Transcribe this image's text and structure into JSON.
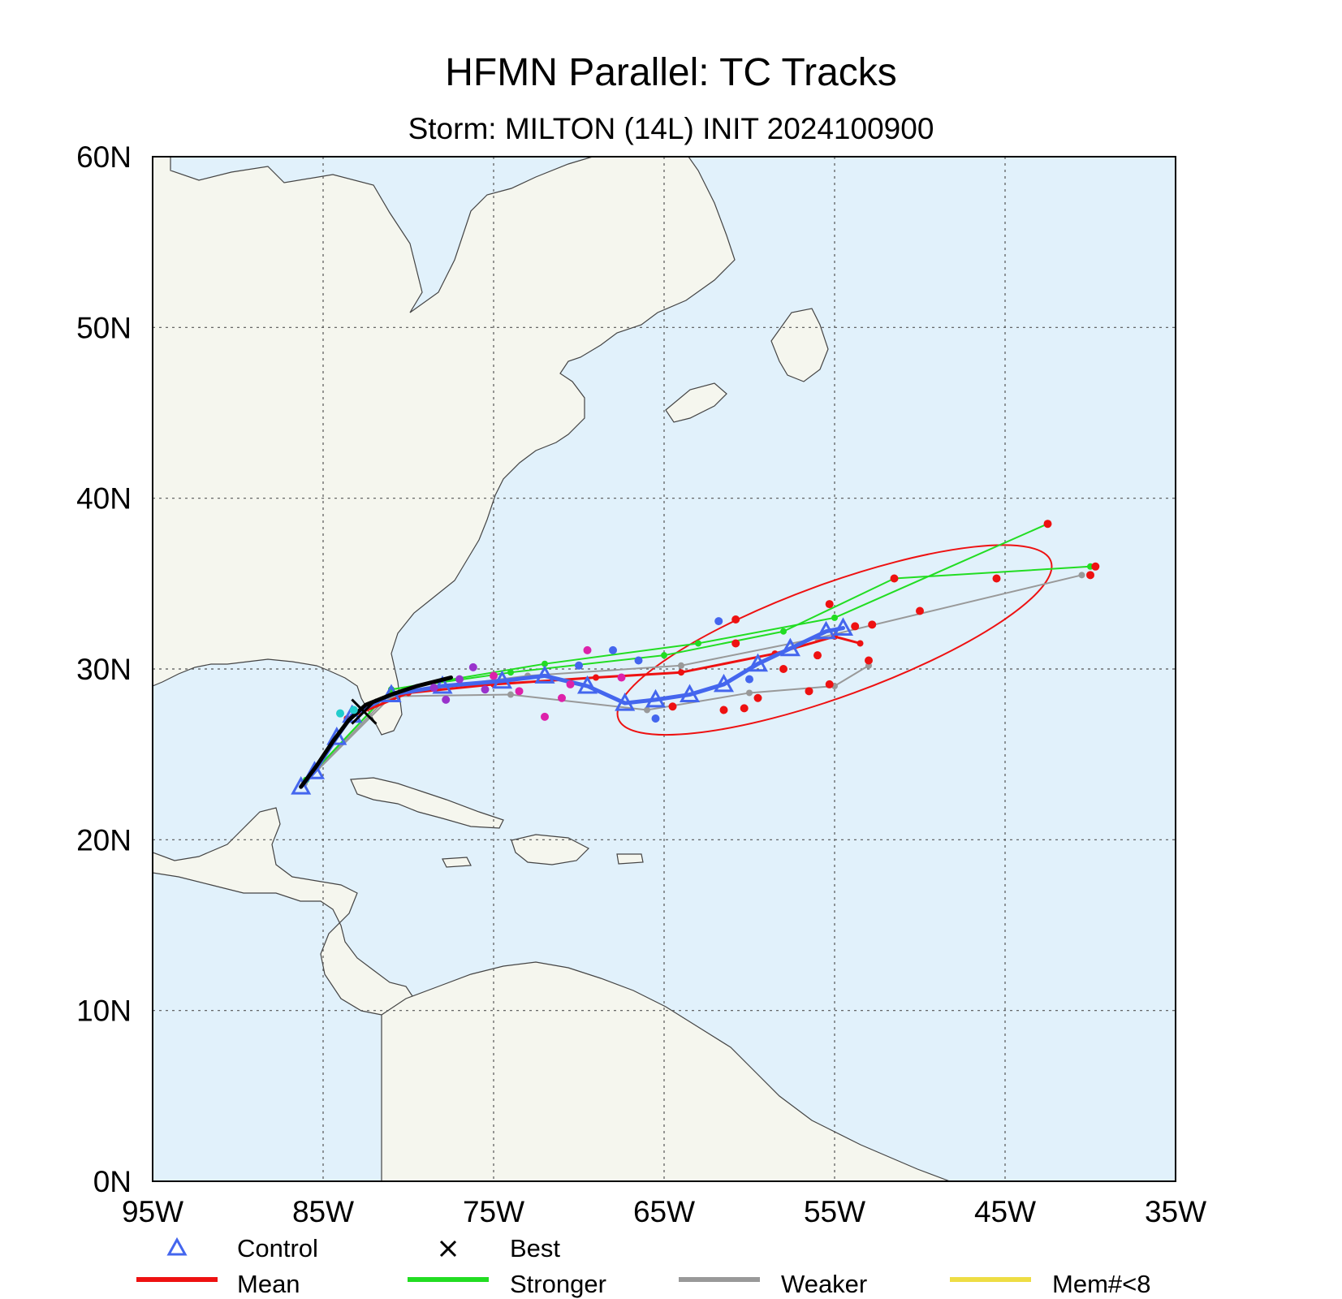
{
  "title": "HFMN Parallel: TC Tracks",
  "subtitle": "Storm: MILTON (14L) INIT 2024100900",
  "map": {
    "lon_range": [
      -95,
      -35
    ],
    "lat_range": [
      0,
      60
    ],
    "lat_ticks": [
      {
        "value": 60,
        "label": "60N"
      },
      {
        "value": 50,
        "label": "50N"
      },
      {
        "value": 40,
        "label": "40N"
      },
      {
        "value": 30,
        "label": "30N"
      },
      {
        "value": 20,
        "label": "20N"
      },
      {
        "value": 10,
        "label": "10N"
      },
      {
        "value": 0,
        "label": "0N"
      }
    ],
    "lon_ticks": [
      {
        "value": -95,
        "label": "95W"
      },
      {
        "value": -85,
        "label": "85W"
      },
      {
        "value": -75,
        "label": "75W"
      },
      {
        "value": -65,
        "label": "65W"
      },
      {
        "value": -55,
        "label": "55W"
      },
      {
        "value": -45,
        "label": "45W"
      },
      {
        "value": -35,
        "label": "35W"
      }
    ],
    "grid": "dotted",
    "colors": {
      "ocean": "#e1f1fb",
      "land": "#f5f6ee",
      "coast": "#444444",
      "border": "#777777"
    }
  },
  "chart_data": {
    "type": "scatter",
    "title": "HFMN Parallel: TC Tracks",
    "subtitle": "Storm: MILTON (14L) INIT 2024100900",
    "xlim": [
      -95,
      -35
    ],
    "ylim": [
      0,
      60
    ],
    "series": [
      {
        "name": "Best",
        "color": "#000000",
        "points": [
          [
            -86.3,
            23.1
          ],
          [
            -85.4,
            24.3
          ],
          [
            -84.4,
            25.8
          ],
          [
            -83.5,
            27.0
          ],
          [
            -82.5,
            27.9
          ],
          [
            -81.0,
            28.5
          ],
          [
            -79.5,
            29.0
          ],
          [
            -77.5,
            29.5
          ]
        ]
      },
      {
        "name": "Control",
        "color": "#4466ee",
        "points": [
          [
            -86.3,
            23.1
          ],
          [
            -85.5,
            24.0
          ],
          [
            -84.2,
            26.0
          ],
          [
            -83.3,
            27.3
          ],
          [
            -81.0,
            28.5
          ],
          [
            -78.0,
            29.0
          ],
          [
            -74.5,
            29.3
          ],
          [
            -72.0,
            29.6
          ],
          [
            -69.5,
            29.0
          ],
          [
            -67.3,
            28.0
          ],
          [
            -65.5,
            28.2
          ],
          [
            -63.5,
            28.5
          ],
          [
            -61.5,
            29.1
          ],
          [
            -59.5,
            30.3
          ],
          [
            -57.6,
            31.2
          ],
          [
            -55.5,
            32.2
          ],
          [
            -54.5,
            32.4
          ]
        ]
      },
      {
        "name": "Stronger",
        "color": "#22dd22",
        "points": [
          [
            -86.0,
            23.5
          ],
          [
            -81.0,
            28.8
          ],
          [
            -74.0,
            29.8
          ],
          [
            -65.0,
            30.8
          ],
          [
            -58.0,
            32.2
          ],
          [
            -51.5,
            35.3
          ],
          [
            -40.0,
            36.0
          ]
        ]
      },
      {
        "name": "Stronger",
        "color": "#22dd22",
        "points": [
          [
            -86.0,
            23.5
          ],
          [
            -81.0,
            28.8
          ],
          [
            -72.0,
            30.3
          ],
          [
            -63.0,
            31.5
          ],
          [
            -55.0,
            33.0
          ],
          [
            -42.5,
            38.5
          ]
        ]
      },
      {
        "name": "Weaker",
        "color": "#999999",
        "points": [
          [
            -86.1,
            23.3
          ],
          [
            -81.0,
            28.6
          ],
          [
            -73.0,
            29.6
          ],
          [
            -64.0,
            30.2
          ],
          [
            -56.0,
            31.8
          ],
          [
            -40.5,
            35.5
          ]
        ]
      },
      {
        "name": "Weaker",
        "color": "#999999",
        "points": [
          [
            -86.1,
            23.3
          ],
          [
            -81.0,
            28.4
          ],
          [
            -74.0,
            28.5
          ],
          [
            -66.0,
            27.6
          ],
          [
            -60.0,
            28.6
          ],
          [
            -55.0,
            29.0
          ],
          [
            -53.0,
            30.2
          ]
        ]
      },
      {
        "name": "Mean",
        "color": "#ee1111",
        "points": [
          [
            -83.6,
            27.1
          ],
          [
            -80.0,
            28.6
          ],
          [
            -75.0,
            29.1
          ],
          [
            -69.0,
            29.5
          ],
          [
            -64.0,
            29.8
          ],
          [
            -58.5,
            30.9
          ],
          [
            -55.0,
            31.9
          ],
          [
            -53.5,
            31.5
          ]
        ]
      }
    ],
    "extra_points": [
      {
        "color": "#ee1111",
        "points": [
          [
            -42.5,
            38.5
          ],
          [
            -39.7,
            36.0
          ],
          [
            -40.0,
            35.5
          ],
          [
            -45.5,
            35.3
          ],
          [
            -51.5,
            35.3
          ],
          [
            -50.0,
            33.4
          ],
          [
            -55.3,
            33.8
          ],
          [
            -60.8,
            32.9
          ],
          [
            -53.0,
            30.5
          ],
          [
            -55.3,
            29.1
          ],
          [
            -56.5,
            28.7
          ],
          [
            -59.5,
            28.3
          ],
          [
            -60.3,
            27.7
          ],
          [
            -61.5,
            27.6
          ],
          [
            -64.5,
            27.8
          ],
          [
            -58.0,
            30.0
          ],
          [
            -56.0,
            30.8
          ],
          [
            -60.8,
            31.5
          ],
          [
            -53.8,
            32.5
          ],
          [
            -52.8,
            32.6
          ]
        ]
      },
      {
        "color": "#4466ee",
        "points": [
          [
            -61.8,
            32.8
          ],
          [
            -68.0,
            31.1
          ],
          [
            -65.5,
            27.1
          ],
          [
            -70.0,
            30.2
          ],
          [
            -66.5,
            30.5
          ],
          [
            -60.0,
            29.4
          ]
        ]
      },
      {
        "color": "#dd22aa",
        "points": [
          [
            -72.0,
            27.2
          ],
          [
            -69.5,
            31.1
          ],
          [
            -67.5,
            29.5
          ],
          [
            -70.5,
            29.1
          ],
          [
            -73.5,
            28.7
          ],
          [
            -75.0,
            29.6
          ],
          [
            -71.0,
            28.3
          ]
        ]
      },
      {
        "color": "#9933cc",
        "points": [
          [
            -78.5,
            28.9
          ],
          [
            -77.0,
            29.4
          ],
          [
            -76.2,
            30.1
          ],
          [
            -77.8,
            28.2
          ],
          [
            -75.5,
            28.8
          ]
        ]
      },
      {
        "color": "#22cccc",
        "points": [
          [
            -84.0,
            27.4
          ],
          [
            -83.2,
            27.6
          ]
        ]
      }
    ],
    "mean_ellipse": {
      "center_lon": -55.0,
      "center_lat": 31.7,
      "rx_deg": 13.5,
      "ry_deg": 3.3,
      "rotation_deg": -20,
      "color": "#ee1111"
    },
    "legend": [
      {
        "label": "Control",
        "symbol": "triangle",
        "color": "#4466ee"
      },
      {
        "label": "Best",
        "symbol": "x",
        "color": "#000000"
      },
      {
        "label": "Mean",
        "symbol": "line",
        "color": "#ee1111"
      },
      {
        "label": "Stronger",
        "symbol": "line",
        "color": "#22dd22"
      },
      {
        "label": "Weaker",
        "symbol": "line",
        "color": "#999999"
      },
      {
        "label": "Mem#<8",
        "symbol": "line",
        "color": "#eedd44"
      }
    ],
    "legend_placement": "bottom"
  }
}
